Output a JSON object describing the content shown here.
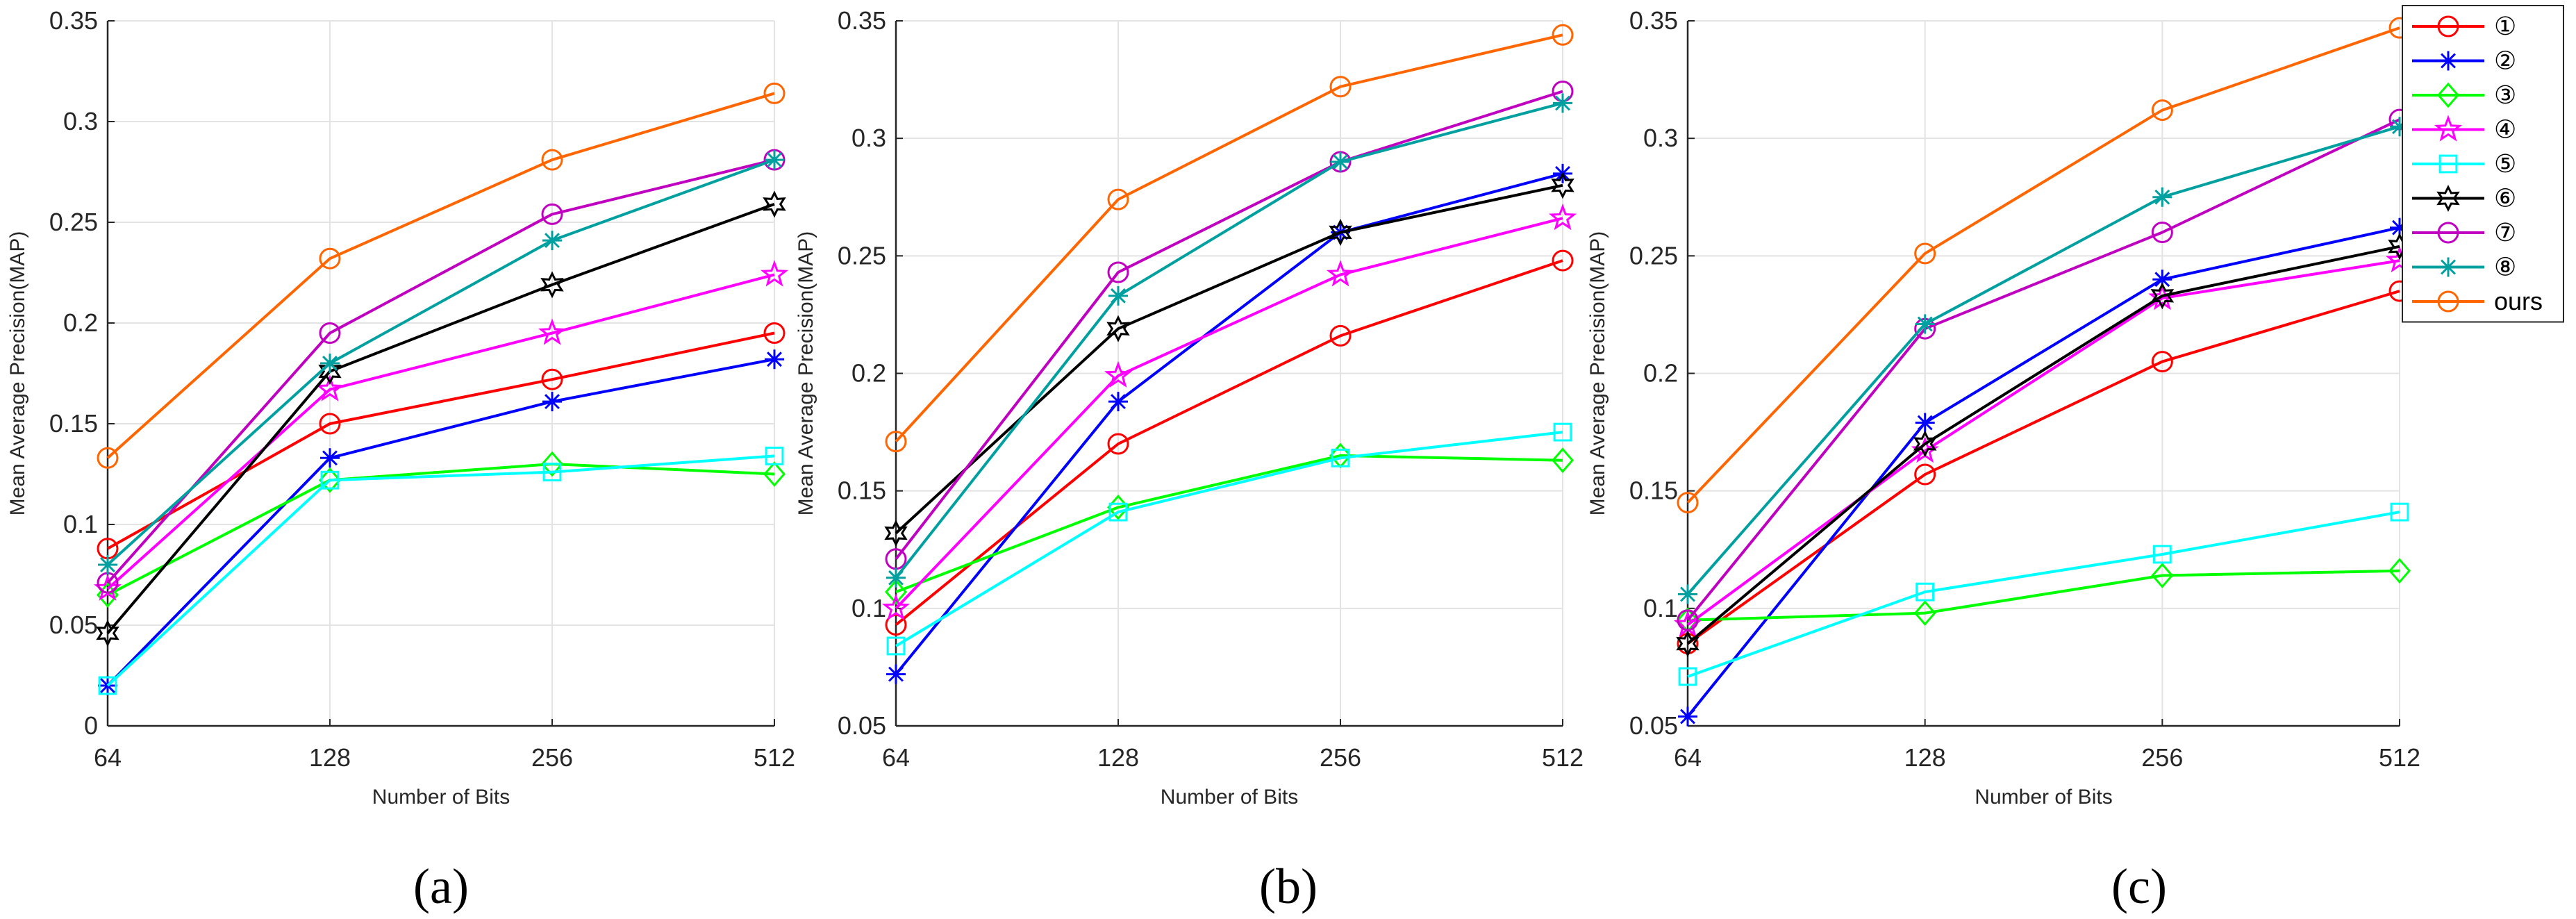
{
  "chart_data": [
    {
      "type": "line",
      "caption": "(a)",
      "xlabel": "Number of Bits",
      "ylabel": "Mean Average Precision(MAP)",
      "categories": [
        "64",
        "128",
        "256",
        "512"
      ],
      "ylim": [
        0,
        0.35
      ],
      "yticks": [
        0,
        0.05,
        0.1,
        0.15,
        0.2,
        0.25,
        0.3,
        0.35
      ],
      "ytick_labels": [
        "0",
        "0.05",
        "0.1",
        "0.15",
        "0.2",
        "0.25",
        "0.3",
        "0.35"
      ],
      "grid": true,
      "series": [
        {
          "name": "①",
          "values": [
            0.088,
            0.15,
            0.172,
            0.195
          ]
        },
        {
          "name": "②",
          "values": [
            0.02,
            0.133,
            0.161,
            0.182
          ]
        },
        {
          "name": "③",
          "values": [
            0.065,
            0.122,
            0.13,
            0.125
          ]
        },
        {
          "name": "④",
          "values": [
            0.068,
            0.167,
            0.195,
            0.224
          ]
        },
        {
          "name": "⑤",
          "values": [
            0.02,
            0.122,
            0.126,
            0.134
          ]
        },
        {
          "name": "⑥",
          "values": [
            0.046,
            0.176,
            0.219,
            0.259
          ]
        },
        {
          "name": "⑦",
          "values": [
            0.071,
            0.195,
            0.254,
            0.281
          ]
        },
        {
          "name": "⑧",
          "values": [
            0.08,
            0.18,
            0.241,
            0.281
          ]
        },
        {
          "name": "ours",
          "values": [
            0.133,
            0.232,
            0.281,
            0.314
          ]
        }
      ]
    },
    {
      "type": "line",
      "caption": "(b)",
      "xlabel": "Number of Bits",
      "ylabel": "Mean Average Precision(MAP)",
      "categories": [
        "64",
        "128",
        "256",
        "512"
      ],
      "ylim": [
        0.05,
        0.35
      ],
      "yticks": [
        0.05,
        0.1,
        0.15,
        0.2,
        0.25,
        0.3,
        0.35
      ],
      "ytick_labels": [
        "0.05",
        "0.1",
        "0.15",
        "0.2",
        "0.25",
        "0.3",
        "0.35"
      ],
      "grid": true,
      "series": [
        {
          "name": "①",
          "values": [
            0.093,
            0.17,
            0.216,
            0.248
          ]
        },
        {
          "name": "②",
          "values": [
            0.072,
            0.188,
            0.26,
            0.285
          ]
        },
        {
          "name": "③",
          "values": [
            0.107,
            0.143,
            0.165,
            0.163
          ]
        },
        {
          "name": "④",
          "values": [
            0.1,
            0.199,
            0.242,
            0.266
          ]
        },
        {
          "name": "⑤",
          "values": [
            0.084,
            0.141,
            0.164,
            0.175
          ]
        },
        {
          "name": "⑥",
          "values": [
            0.132,
            0.219,
            0.26,
            0.28
          ]
        },
        {
          "name": "⑦",
          "values": [
            0.121,
            0.243,
            0.29,
            0.32
          ]
        },
        {
          "name": "⑧",
          "values": [
            0.113,
            0.233,
            0.29,
            0.315
          ]
        },
        {
          "name": "ours",
          "values": [
            0.171,
            0.274,
            0.322,
            0.344
          ]
        }
      ]
    },
    {
      "type": "line",
      "caption": "(c)",
      "xlabel": "Number of Bits",
      "ylabel": "Mean Average Precision(MAP)",
      "categories": [
        "64",
        "128",
        "256",
        "512"
      ],
      "ylim": [
        0.05,
        0.35
      ],
      "yticks": [
        0.05,
        0.1,
        0.15,
        0.2,
        0.25,
        0.3,
        0.35
      ],
      "ytick_labels": [
        "0.05",
        "0.1",
        "0.15",
        "0.2",
        "0.25",
        "0.3",
        "0.35"
      ],
      "grid": true,
      "legend": "top-right",
      "series": [
        {
          "name": "①",
          "values": [
            0.085,
            0.157,
            0.205,
            0.235
          ]
        },
        {
          "name": "②",
          "values": [
            0.054,
            0.179,
            0.24,
            0.262
          ]
        },
        {
          "name": "③",
          "values": [
            0.095,
            0.098,
            0.114,
            0.116
          ]
        },
        {
          "name": "④",
          "values": [
            0.093,
            0.167,
            0.232,
            0.248
          ]
        },
        {
          "name": "⑤",
          "values": [
            0.071,
            0.107,
            0.123,
            0.141
          ]
        },
        {
          "name": "⑥",
          "values": [
            0.085,
            0.17,
            0.233,
            0.254
          ]
        },
        {
          "name": "⑦",
          "values": [
            0.095,
            0.219,
            0.26,
            0.308
          ]
        },
        {
          "name": "⑧",
          "values": [
            0.106,
            0.221,
            0.275,
            0.305
          ]
        },
        {
          "name": "ours",
          "values": [
            0.145,
            0.251,
            0.312,
            0.347
          ]
        }
      ]
    }
  ],
  "series_style": [
    {
      "name": "①",
      "color": "#ff0000",
      "marker": "circle"
    },
    {
      "name": "②",
      "color": "#0000ff",
      "marker": "asterisk"
    },
    {
      "name": "③",
      "color": "#00ff00",
      "marker": "diamond"
    },
    {
      "name": "④",
      "color": "#ff00ff",
      "marker": "pentagram"
    },
    {
      "name": "⑤",
      "color": "#00ffff",
      "marker": "square"
    },
    {
      "name": "⑥",
      "color": "#000000",
      "marker": "hexagram"
    },
    {
      "name": "⑦",
      "color": "#c000c0",
      "marker": "circle"
    },
    {
      "name": "⑧",
      "color": "#00a0a0",
      "marker": "asterisk"
    },
    {
      "name": "ours",
      "color": "#ff6600",
      "marker": "circle"
    }
  ]
}
